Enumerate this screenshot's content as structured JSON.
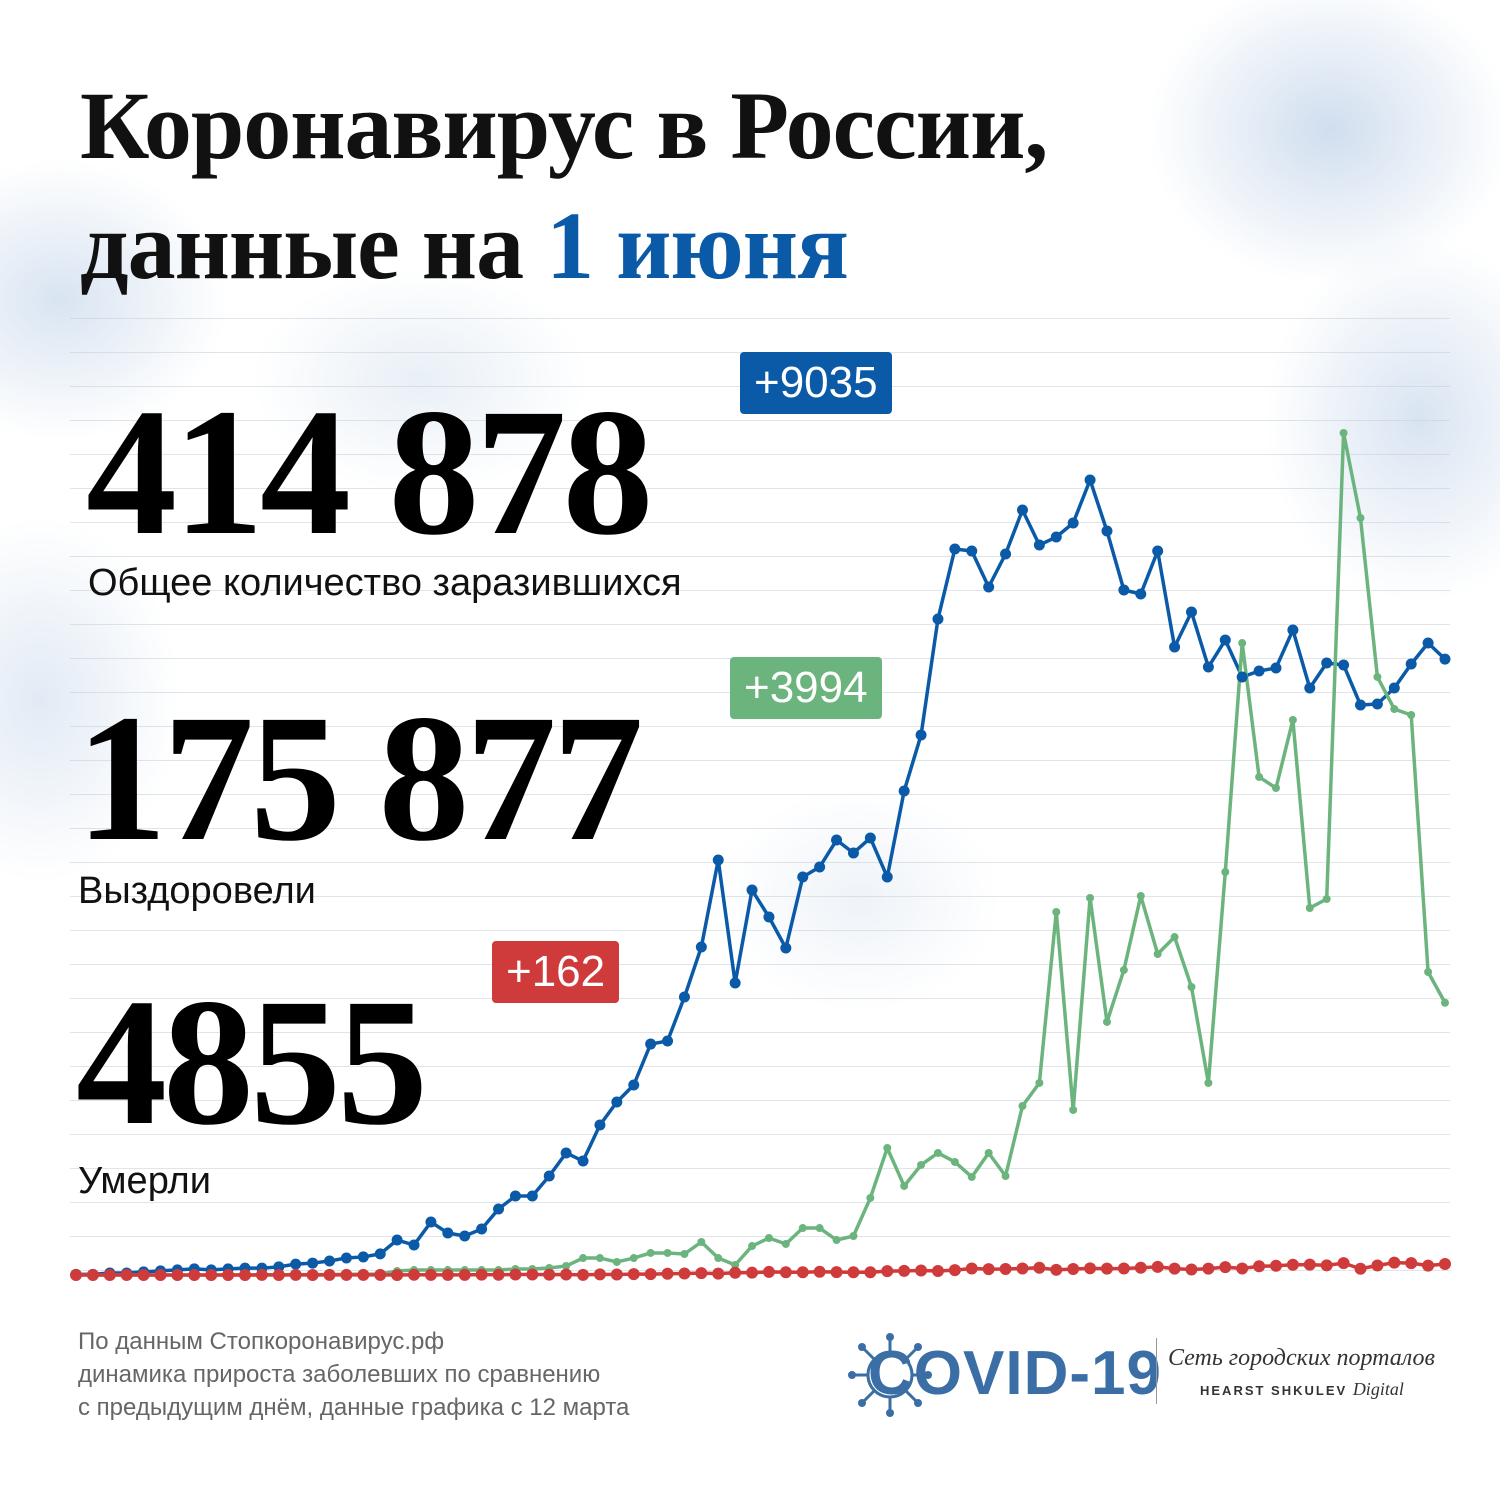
{
  "title_line1": "Коронавирус в России,",
  "title_line2": "данные на",
  "title_date": "1 июня",
  "stats": [
    {
      "total": "414 878",
      "delta": "+9035",
      "label": "Общее количество заразившихся",
      "color": "#0a5aa8"
    },
    {
      "total": "175 877",
      "delta": "+3994",
      "label": "Выздоровели",
      "color": "#6cb47e"
    },
    {
      "total": "4855",
      "delta": "+162",
      "label": "Умерли",
      "color": "#cf3a3a"
    }
  ],
  "chart_data": {
    "type": "line",
    "series": [
      {
        "color": "#0a5aa8",
        "values": [
          10,
          10,
          30,
          30,
          45,
          60,
          75,
          90,
          75,
          90,
          100,
          100,
          120,
          160,
          175,
          205,
          250,
          265,
          310,
          513,
          440,
          777,
          616,
          572,
          675,
          968,
          1159,
          1159,
          1452,
          1790,
          1672,
          2200,
          2538,
          2787,
          3388,
          3433,
          4078,
          4812,
          6088,
          4283,
          5647,
          5252,
          4797,
          5838,
          5985,
          6381,
          6191,
          6411,
          5838,
          7100,
          7922,
          9624,
          10651,
          10621,
          10093,
          10577,
          11222,
          10709,
          10826,
          11032,
          11663,
          10914,
          10049,
          9990,
          10621,
          9213,
          9726,
          8919,
          9315,
          8772,
          8861,
          8905,
          9462,
          8611,
          8978,
          8949,
          8362,
          8377,
          8611,
          8963,
          9271,
          9035
        ]
      },
      {
        "color": "#6cb47e",
        "values": [
          0,
          0,
          0,
          0,
          0,
          0,
          0,
          0,
          0,
          1,
          1,
          2,
          3,
          5,
          6,
          8,
          10,
          12,
          15,
          59,
          73,
          73,
          73,
          73,
          73,
          73,
          88,
          88,
          103,
          132,
          249,
          249,
          191,
          249,
          323,
          323,
          308,
          484,
          249,
          147,
          425,
          543,
          455,
          689,
          689,
          513,
          572,
          1130,
          1863,
          1306,
          1614,
          1790,
          1658,
          1438,
          1790,
          1452,
          2479,
          2817,
          5325,
          2421,
          5531,
          3712,
          4474,
          5560,
          4709,
          4958,
          4225,
          2817,
          5912,
          9271,
          7306,
          7144,
          8142,
          5384,
          5516,
          12352,
          11105,
          8773,
          8303,
          8215,
          4445,
          3994
        ]
      },
      {
        "color": "#cf3a3a",
        "values": [
          0,
          0,
          0,
          0,
          0,
          0,
          0,
          0,
          0,
          0,
          0,
          1,
          0,
          1,
          0,
          2,
          1,
          1,
          1,
          0,
          3,
          2,
          2,
          2,
          5,
          4,
          7,
          7,
          6,
          8,
          2,
          9,
          8,
          13,
          13,
          18,
          22,
          28,
          20,
          33,
          34,
          45,
          41,
          40,
          47,
          42,
          40,
          40,
          57,
          60,
          66,
          58,
          72,
          95,
          86,
          88,
          96,
          107,
          76,
          88,
          98,
          93,
          96,
          107,
          119,
          94,
          81,
          93,
          115,
          96,
          128,
          135,
          150,
          153,
          141,
          174,
          92,
          139,
          181,
          174,
          138,
          162
        ]
      }
    ]
  },
  "footer": [
    "По данным Стопкоронавирус.рф",
    "динамика прироста заболевших по сравнению",
    "с предыдущим днём, данные графика с 12 марта"
  ],
  "logo": {
    "mark": "COVID-19",
    "network": "Сеть городских порталов",
    "brand": "HEARST SHKULEV",
    "brand_suffix": "Digital"
  }
}
